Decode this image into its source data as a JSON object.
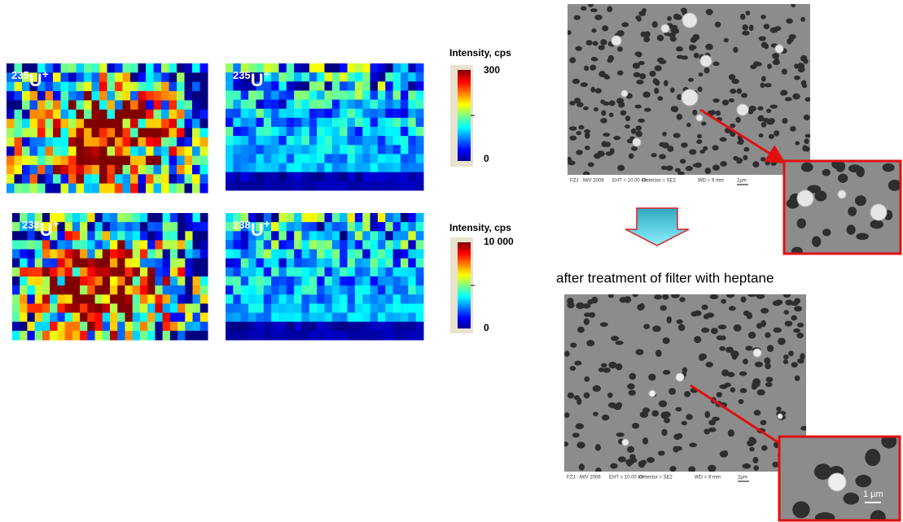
{
  "maps": [
    {
      "isotope": {
        "mass": "235",
        "symbol": "U",
        "charge": "+"
      }
    },
    {
      "isotope": {
        "mass": "235",
        "symbol": "U",
        "charge": "+"
      }
    },
    {
      "isotope": {
        "mass": "238",
        "symbol": "U",
        "charge": "+"
      }
    },
    {
      "isotope": {
        "mass": "238",
        "symbol": "U",
        "charge": "+"
      }
    }
  ],
  "scales": [
    {
      "title": "Intensity, cps",
      "max": "300",
      "min": "0"
    },
    {
      "title": "Intensity, cps",
      "max": "10 000",
      "min": "0"
    }
  ],
  "caption": "after treatment of filter with heptane",
  "sem": [
    {
      "footer": [
        "FZJ : IWV 2006",
        "EHT = 10.00 kV",
        "Detector = SE2",
        "WD =  9 mm",
        "2µm"
      ]
    },
    {
      "footer": [
        "FZJ : IWV 2006",
        "EHT = 10.00 kV",
        "Detector = SE2",
        "WD =  9 mm",
        "2µm"
      ],
      "inset_scale": "1 µm"
    }
  ]
}
